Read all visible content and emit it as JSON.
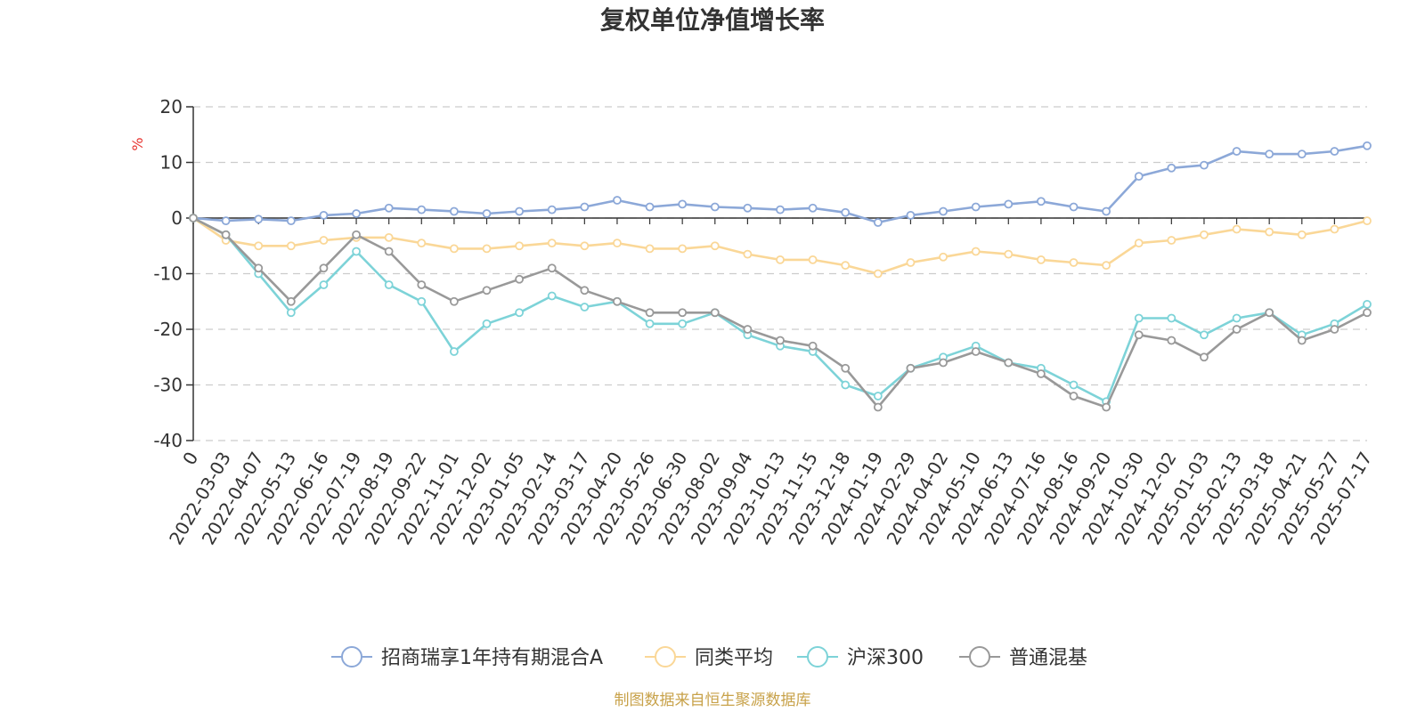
{
  "chart_data": {
    "type": "line",
    "title": "复权单位净值增长率",
    "ylabel": "%",
    "ylim": [
      -40,
      20
    ],
    "yticks": [
      20,
      10,
      0,
      -10,
      -20,
      -30,
      -40
    ],
    "grid": true,
    "legend_position": "bottom",
    "source": "制图数据来自恒生聚源数据库",
    "x": [
      "0",
      "2022-03-03",
      "2022-04-07",
      "2022-05-13",
      "2022-06-16",
      "2022-07-19",
      "2022-08-19",
      "2022-09-22",
      "2022-11-01",
      "2022-12-02",
      "2023-01-05",
      "2023-02-14",
      "2023-03-17",
      "2023-04-20",
      "2023-05-26",
      "2023-06-30",
      "2023-08-02",
      "2023-09-04",
      "2023-10-13",
      "2023-11-15",
      "2023-12-18",
      "2024-01-19",
      "2024-02-29",
      "2024-04-02",
      "2024-05-10",
      "2024-06-13",
      "2024-07-16",
      "2024-08-16",
      "2024-09-20",
      "2024-10-30",
      "2024-12-02",
      "2025-01-03",
      "2025-02-13",
      "2025-03-18",
      "2025-04-21",
      "2025-05-27",
      "2025-07-17"
    ],
    "series": [
      {
        "name": "招商瑞享1年持有期混合A",
        "color": "#8ca8d8",
        "values": [
          0,
          -0.5,
          -0.2,
          -0.5,
          0.5,
          0.8,
          1.8,
          1.5,
          1.2,
          0.8,
          1.2,
          1.5,
          2,
          3.2,
          2,
          2.5,
          2,
          1.8,
          1.5,
          1.8,
          1,
          -0.8,
          0.5,
          1.2,
          2,
          2.5,
          3,
          2,
          1.2,
          7.5,
          9,
          9.5,
          12,
          11.5,
          11.5,
          12,
          13
        ]
      },
      {
        "name": "同类平均",
        "color": "#fad797",
        "values": [
          0,
          -4,
          -5,
          -5,
          -4,
          -3.5,
          -3.5,
          -4.5,
          -5.5,
          -5.5,
          -5,
          -4.5,
          -5,
          -4.5,
          -5.5,
          -5.5,
          -5,
          -6.5,
          -7.5,
          -7.5,
          -8.5,
          -10,
          -8,
          -7,
          -6,
          -6.5,
          -7.5,
          -8,
          -8.5,
          -4.5,
          -4,
          -3,
          -2,
          -2.5,
          -3,
          -2,
          -0.5
        ]
      },
      {
        "name": "沪深300",
        "color": "#7dd3d8",
        "values": [
          0,
          -3,
          -10,
          -17,
          -12,
          -6,
          -12,
          -15,
          -24,
          -19,
          -17,
          -14,
          -16,
          -15,
          -19,
          -19,
          -17,
          -21,
          -23,
          -24,
          -30,
          -32,
          -27,
          -25,
          -23,
          -26,
          -27,
          -30,
          -33,
          -18,
          -18,
          -21,
          -18,
          -17,
          -21,
          -19,
          -15.5
        ]
      },
      {
        "name": "普通混基",
        "color": "#999999",
        "values": [
          0,
          -3,
          -9,
          -15,
          -9,
          -3,
          -6,
          -12,
          -15,
          -13,
          -11,
          -9,
          -13,
          -15,
          -17,
          -17,
          -17,
          -20,
          -22,
          -23,
          -27,
          -34,
          -27,
          -26,
          -24,
          -26,
          -28,
          -32,
          -34,
          -21,
          -22,
          -25,
          -20,
          -17,
          -22,
          -20,
          -17
        ]
      }
    ]
  }
}
